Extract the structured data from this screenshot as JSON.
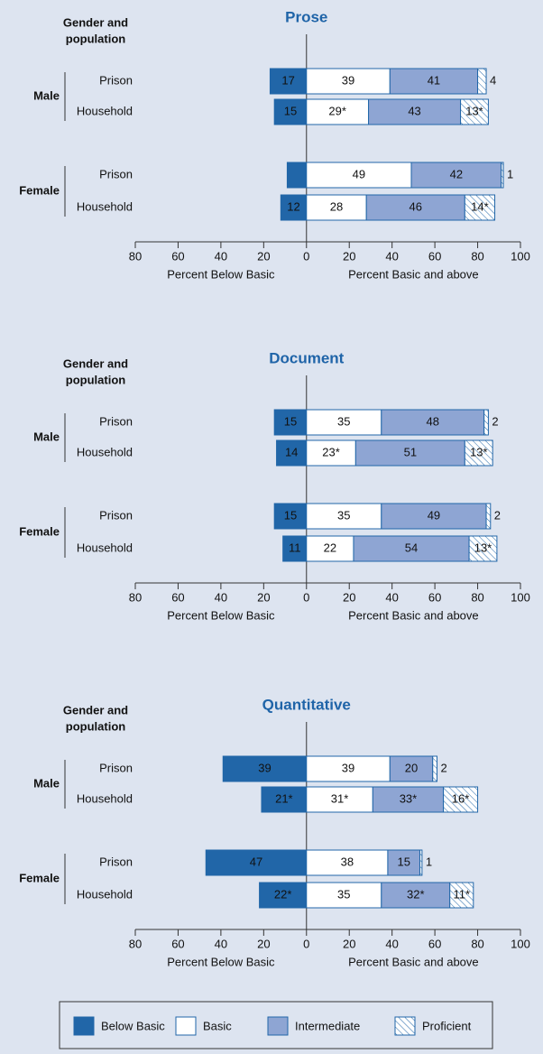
{
  "chart_data": [
    {
      "type": "diverging_bar",
      "title": "Prose",
      "row_header": [
        "Gender and",
        "population"
      ],
      "groups": [
        "Male",
        "Female"
      ],
      "categories": [
        "Prison",
        "Household",
        "Prison",
        "Household"
      ],
      "xlabel_left": "Percent Below Basic",
      "xlabel_right": "Percent Basic and above",
      "xlim": [
        -80,
        100
      ],
      "xticks": [
        {
          "value": -80,
          "label": "80"
        },
        {
          "value": -60,
          "label": "60"
        },
        {
          "value": -40,
          "label": "40"
        },
        {
          "value": -20,
          "label": "20"
        },
        0,
        20,
        40,
        60,
        80,
        100
      ],
      "series": [
        {
          "name": "Below Basic",
          "color": "#2166a8",
          "side": "left",
          "values": [
            17,
            15,
            9,
            12
          ]
        },
        {
          "name": "Basic",
          "color": "#ffffff",
          "values": [
            39,
            29,
            49,
            28
          ],
          "value_labels": [
            "39",
            "29*",
            "49",
            "28"
          ]
        },
        {
          "name": "Intermediate",
          "color": "#8ea5d3",
          "values": [
            41,
            43,
            42,
            46
          ]
        },
        {
          "name": "Proficient",
          "color": "#ffffff",
          "pattern": "hatch",
          "values": [
            4,
            13,
            1,
            14
          ],
          "value_labels": [
            "4",
            "13*",
            "1",
            "14*"
          ]
        }
      ]
    },
    {
      "type": "diverging_bar",
      "title": "Document",
      "row_header": [
        "Gender and",
        "population"
      ],
      "groups": [
        "Male",
        "Female"
      ],
      "categories": [
        "Prison",
        "Household",
        "Prison",
        "Household"
      ],
      "xlabel_left": "Percent Below Basic",
      "xlabel_right": "Percent Basic and above",
      "xlim": [
        -80,
        100
      ],
      "xticks": [
        {
          "value": -80,
          "label": "80"
        },
        {
          "value": -60,
          "label": "60"
        },
        {
          "value": -40,
          "label": "40"
        },
        {
          "value": -20,
          "label": "20"
        },
        0,
        20,
        40,
        60,
        80,
        100
      ],
      "series": [
        {
          "name": "Below Basic",
          "color": "#2166a8",
          "side": "left",
          "values": [
            15,
            14,
            15,
            11
          ]
        },
        {
          "name": "Basic",
          "color": "#ffffff",
          "values": [
            35,
            23,
            35,
            22
          ],
          "value_labels": [
            "35",
            "23*",
            "35",
            "22"
          ]
        },
        {
          "name": "Intermediate",
          "color": "#8ea5d3",
          "values": [
            48,
            51,
            49,
            54
          ]
        },
        {
          "name": "Proficient",
          "color": "#ffffff",
          "pattern": "hatch",
          "values": [
            2,
            13,
            2,
            13
          ],
          "value_labels": [
            "2",
            "13*",
            "2",
            "13*"
          ]
        }
      ]
    },
    {
      "type": "diverging_bar",
      "title": "Quantitative",
      "row_header": [
        "Gender and",
        "population"
      ],
      "groups": [
        "Male",
        "Female"
      ],
      "categories": [
        "Prison",
        "Household",
        "Prison",
        "Household"
      ],
      "xlabel_left": "Percent Below Basic",
      "xlabel_right": "Percent Basic and above",
      "xlim": [
        -80,
        100
      ],
      "xticks": [
        {
          "value": -80,
          "label": "80"
        },
        {
          "value": -60,
          "label": "60"
        },
        {
          "value": -40,
          "label": "40"
        },
        {
          "value": -20,
          "label": "20"
        },
        0,
        20,
        40,
        60,
        80,
        100
      ],
      "series": [
        {
          "name": "Below Basic",
          "color": "#2166a8",
          "side": "left",
          "values": [
            39,
            21,
            47,
            22
          ],
          "value_labels": [
            "39",
            "21*",
            "47",
            "22*"
          ]
        },
        {
          "name": "Basic",
          "color": "#ffffff",
          "values": [
            39,
            31,
            38,
            35
          ],
          "value_labels": [
            "39",
            "31*",
            "38",
            "35"
          ]
        },
        {
          "name": "Intermediate",
          "color": "#8ea5d3",
          "values": [
            20,
            33,
            15,
            32
          ],
          "value_labels": [
            "20",
            "33*",
            "15",
            "32*"
          ]
        },
        {
          "name": "Proficient",
          "color": "#ffffff",
          "pattern": "hatch",
          "values": [
            2,
            16,
            1,
            11
          ],
          "value_labels": [
            "2",
            "16*",
            "1",
            "11*"
          ]
        }
      ]
    }
  ]
}
